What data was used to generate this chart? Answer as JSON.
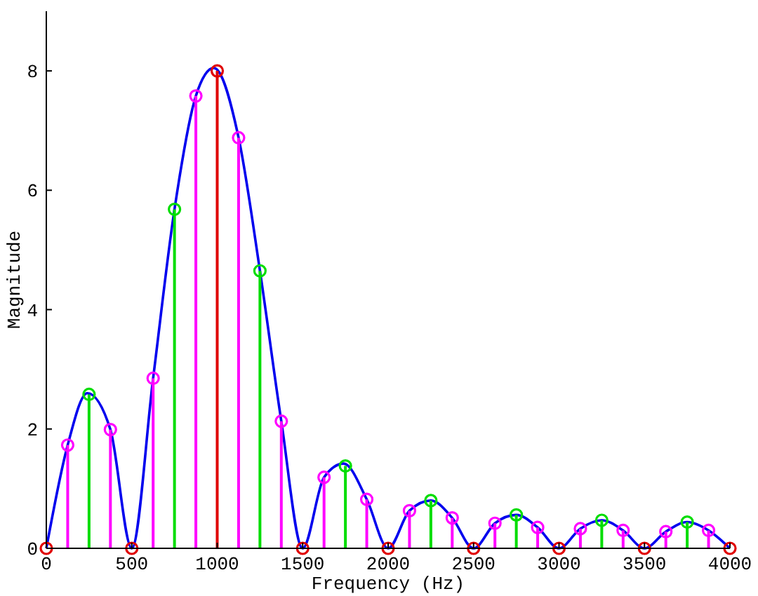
{
  "chart_data": {
    "type": "lollipop",
    "xlabel": "Frequency (Hz)",
    "ylabel": "Magnitude",
    "xlim": [
      0,
      4000
    ],
    "xticks": [
      0,
      500,
      1000,
      1500,
      2000,
      2500,
      3000,
      3500,
      4000
    ],
    "ylim": [
      0,
      9
    ],
    "yticks": [
      0,
      2,
      4,
      6,
      8
    ],
    "grid": false,
    "marker": "circle",
    "series": [
      {
        "type": "line",
        "color": "#0000ee",
        "marker": "none",
        "line_style": "solid",
        "x": [
          0,
          125,
          240,
          375,
          500,
          625,
          750,
          875,
          980,
          1125,
          1250,
          1375,
          1500,
          1625,
          1740,
          1875,
          2000,
          2125,
          2250,
          2375,
          2500,
          2625,
          2750,
          2875,
          3000,
          3125,
          3250,
          3375,
          3500,
          3625,
          3750,
          3875,
          4000
        ],
        "values": [
          0,
          1.73,
          2.6,
          1.99,
          0,
          2.85,
          5.68,
          7.58,
          8.05,
          6.88,
          4.65,
          2.13,
          0,
          1.19,
          1.42,
          0.82,
          0,
          0.63,
          0.8,
          0.51,
          0,
          0.42,
          0.56,
          0.35,
          0,
          0.33,
          0.47,
          0.3,
          0,
          0.28,
          0.44,
          0.3,
          0
        ]
      },
      {
        "color": "#ff00ff",
        "x": [
          125,
          375,
          625,
          875,
          1125,
          1375,
          1625,
          1875,
          2125,
          2375,
          2625,
          2875,
          3125,
          3375,
          3625,
          3875
        ],
        "values": [
          1.73,
          1.99,
          2.85,
          7.58,
          6.88,
          2.13,
          1.19,
          0.82,
          0.63,
          0.51,
          0.42,
          0.35,
          0.33,
          0.3,
          0.28,
          0.3
        ]
      },
      {
        "color": "#00dd00",
        "x": [
          250,
          750,
          1250,
          1750,
          2250,
          2750,
          3250,
          3750
        ],
        "values": [
          2.58,
          5.68,
          4.65,
          1.38,
          0.8,
          0.56,
          0.47,
          0.44
        ]
      },
      {
        "color": "#e00000",
        "x": [
          0,
          500,
          1000,
          1500,
          2000,
          2500,
          3000,
          3500,
          4000
        ],
        "values": [
          0,
          0,
          8,
          0,
          0,
          0,
          0,
          0,
          0
        ]
      }
    ]
  }
}
